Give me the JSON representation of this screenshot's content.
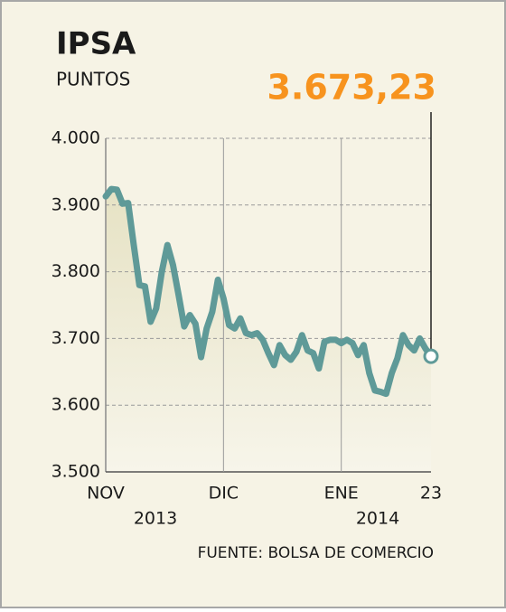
{
  "chart_data": {
    "type": "line",
    "title": "IPSA",
    "subtitle": "PUNTOS",
    "source": "FUENTE: BOLSA DE COMERCIO",
    "categories": [
      "NOV",
      null,
      null,
      null,
      null,
      null,
      null,
      null,
      null,
      null,
      null,
      null,
      null,
      null,
      null,
      null,
      null,
      null,
      null,
      null,
      null,
      "DIC",
      null,
      null,
      null,
      null,
      null,
      null,
      null,
      null,
      null,
      null,
      null,
      null,
      null,
      null,
      null,
      null,
      null,
      null,
      null,
      null,
      "ENE",
      null,
      null,
      null,
      null,
      null,
      null,
      null,
      null,
      null,
      null,
      null,
      null,
      null,
      null,
      null,
      "23"
    ],
    "year_labels": [
      "2013",
      "2014"
    ],
    "series": [
      {
        "name": "IPSA",
        "color": "#5f9a98",
        "values": [
          3913,
          3924,
          3923,
          3902,
          3903,
          3840,
          3780,
          3778,
          3725,
          3745,
          3800,
          3840,
          3810,
          3765,
          3718,
          3735,
          3722,
          3672,
          3715,
          3740,
          3788,
          3760,
          3720,
          3715,
          3730,
          3708,
          3705,
          3708,
          3698,
          3678,
          3660,
          3690,
          3675,
          3668,
          3680,
          3705,
          3682,
          3678,
          3655,
          3695,
          3698,
          3698,
          3693,
          3698,
          3693,
          3675,
          3690,
          3648,
          3622,
          3620,
          3617,
          3648,
          3670,
          3705,
          3690,
          3682,
          3700,
          3685,
          3673.23
        ],
        "value_labels": [
          null,
          null,
          null,
          null,
          null,
          null,
          null,
          null,
          null,
          null,
          null,
          null,
          null,
          null,
          null,
          null,
          null,
          null,
          null,
          null,
          null,
          null,
          null,
          null,
          null,
          null,
          null,
          null,
          null,
          null,
          null,
          null,
          null,
          null,
          null,
          null,
          null,
          null,
          null,
          null,
          null,
          null,
          null,
          null,
          null,
          null,
          null,
          null,
          null,
          null,
          null,
          null,
          null,
          null,
          null,
          null,
          null,
          null,
          "3.673,23"
        ]
      }
    ],
    "ylim": [
      3500,
      4000
    ],
    "yticks": [
      {
        "value": 3500,
        "label": "3.500"
      },
      {
        "value": 3600,
        "label": "3.600"
      },
      {
        "value": 3700,
        "label": "3.700"
      },
      {
        "value": 3800,
        "label": "3.800"
      },
      {
        "value": 3900,
        "label": "3.900"
      },
      {
        "value": 4000,
        "label": "4.000"
      }
    ],
    "grid": true,
    "label_color": "#f7931e"
  }
}
